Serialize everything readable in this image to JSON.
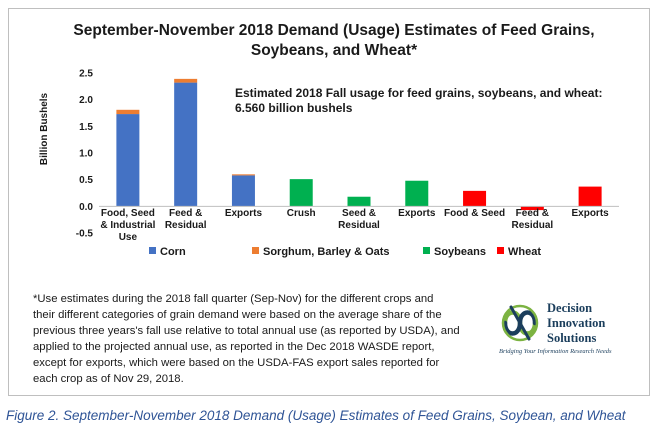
{
  "chart_data": {
    "type": "bar",
    "stacked": true,
    "title": [
      "September-November 2018 Demand (Usage) Estimates of Feed Grains,",
      "Soybeans, and Wheat*"
    ],
    "annotation": [
      "Estimated 2018 Fall usage for feed grains, soybeans, and wheat:",
      "6.560 billion bushels"
    ],
    "ylabel": "Billion Bushels",
    "ylim": [
      -0.5,
      2.5
    ],
    "yticks": [
      "2.5",
      "2.0",
      "1.5",
      "1.0",
      "0.5",
      "0.0",
      "-0.5"
    ],
    "ytick_values": [
      2.5,
      2.0,
      1.5,
      1.0,
      0.5,
      0.0,
      -0.5
    ],
    "grid": false,
    "legend_position": "bottom",
    "categories": [
      [
        "Food, Seed",
        "& Industrial",
        "Use"
      ],
      [
        "Feed &",
        "Residual"
      ],
      [
        "Exports"
      ],
      [
        "Crush"
      ],
      [
        "Seed &",
        "Residual"
      ],
      [
        "Exports"
      ],
      [
        "Food & Seed"
      ],
      [
        "Feed &",
        "Residual"
      ],
      [
        "Exports"
      ]
    ],
    "series": [
      {
        "name": "Corn",
        "color": "#4472c4",
        "values": [
          1.73,
          2.32,
          0.58,
          0,
          0,
          0,
          0,
          0,
          0
        ]
      },
      {
        "name": "Sorghum, Barley & Oats",
        "color": "#ed7d31",
        "values": [
          0.08,
          0.07,
          0.02,
          0,
          0,
          0,
          0,
          0,
          0
        ]
      },
      {
        "name": "Soybeans",
        "color": "#00b050",
        "values": [
          0,
          0,
          0,
          0.51,
          0.18,
          0.48,
          0,
          0,
          0
        ]
      },
      {
        "name": "Wheat",
        "color": "#ff0000",
        "values": [
          0,
          0,
          0,
          0,
          0,
          0,
          0.29,
          -0.07,
          0.37
        ]
      }
    ]
  },
  "footnote": [
    "*Use estimates during the 2018 fall quarter (Sep-Nov) for the different crops and",
    "their different categories of grain demand were based on the average share of the",
    "previous three years's fall use relative to total annual use (as reported by USDA), and",
    "applied to the projected annual use, as reported in the Dec 2018 WASDE report,",
    "except for exports, which were based on the USDA-FAS export sales reported for",
    "each crop as of Nov 29, 2018."
  ],
  "logo": {
    "name": "Decision\nInnovation\nSolutions",
    "tagline": "Bridging Your Information Research Needs",
    "colors": {
      "navy": "#1b3e5c",
      "green": "#7cb342"
    }
  },
  "caption": "Figure 2. September-November 2018 Demand (Usage) Estimates of Feed Grains, Soybean, and Wheat"
}
